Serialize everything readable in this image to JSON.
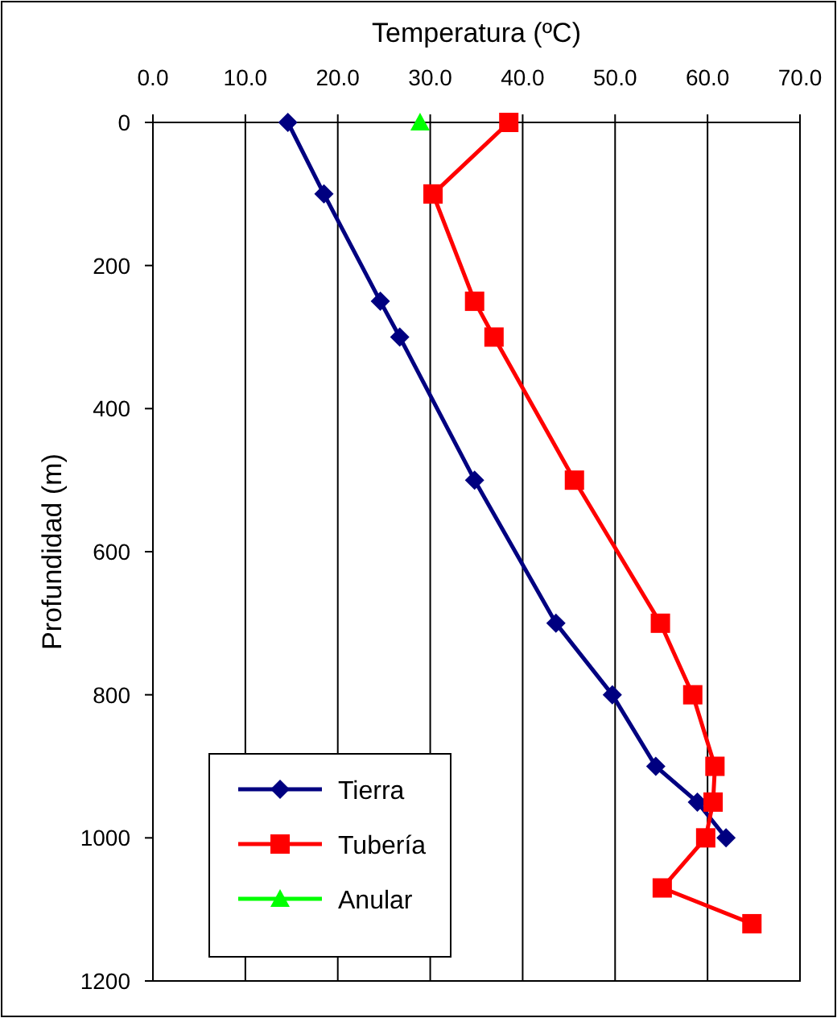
{
  "chart_data": {
    "type": "line",
    "xlabel": "Temperatura (ºC)",
    "ylabel": "Profundidad (m)",
    "xlim": [
      0,
      70
    ],
    "xticks": [
      {
        "value": 0,
        "label": "0.0"
      },
      {
        "value": 10,
        "label": "10.0"
      },
      {
        "value": 20,
        "label": "20.0"
      },
      {
        "value": 30,
        "label": "30.0"
      },
      {
        "value": 40,
        "label": "40.0"
      },
      {
        "value": 50,
        "label": "50.0"
      },
      {
        "value": 60,
        "label": "60.0"
      },
      {
        "value": 70,
        "label": "70.0"
      }
    ],
    "ylim": [
      1200,
      0
    ],
    "yticks": [
      0,
      200,
      400,
      600,
      800,
      1000,
      1200
    ],
    "grid": "x",
    "legend": "bottom left",
    "series": [
      {
        "name": "Tierra",
        "color": "#000080",
        "marker": "diamond",
        "x": [
          14.6,
          18.5,
          24.6,
          26.7,
          34.8,
          43.6,
          49.7,
          54.4,
          58.9,
          62.0
        ],
        "values": [
          0,
          100,
          250,
          300,
          500,
          700,
          800,
          900,
          950,
          1000
        ]
      },
      {
        "name": "Tubería",
        "color": "#ff0000",
        "marker": "square",
        "x": [
          38.5,
          30.3,
          34.8,
          36.9,
          45.6,
          54.9,
          58.4,
          60.8,
          60.6,
          59.8,
          55.1,
          64.8
        ],
        "values": [
          0,
          100,
          250,
          300,
          500,
          700,
          800,
          900,
          950,
          1000,
          1070,
          1120
        ]
      },
      {
        "name": "Anular",
        "color": "#00ff00",
        "marker": "triangle",
        "x": [
          28.9
        ],
        "values": [
          0
        ]
      }
    ]
  }
}
